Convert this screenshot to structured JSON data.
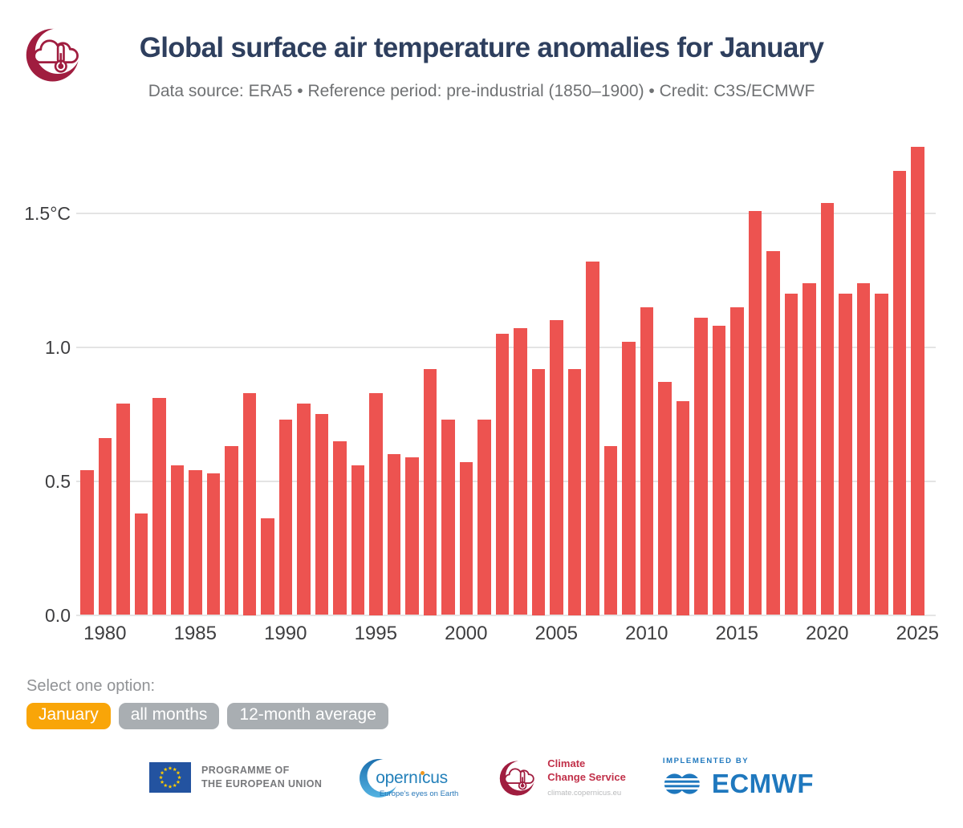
{
  "header": {
    "title": "Global surface air temperature anomalies for January",
    "subtitle": "Data source: ERA5 • Reference period: pre-industrial (1850–1900) • Credit: C3S/ECMWF"
  },
  "chart_data": {
    "type": "bar",
    "title": "Global surface air temperature anomalies for January",
    "xlabel": "",
    "ylabel": "",
    "y_unit": "°C",
    "ylim": [
      0,
      1.8
    ],
    "grid": true,
    "legend": "none",
    "bar_color": "#ED5350",
    "x": [
      1979,
      1980,
      1981,
      1982,
      1983,
      1984,
      1985,
      1986,
      1987,
      1988,
      1989,
      1990,
      1991,
      1992,
      1993,
      1994,
      1995,
      1996,
      1997,
      1998,
      1999,
      2000,
      2001,
      2002,
      2003,
      2004,
      2005,
      2006,
      2007,
      2008,
      2009,
      2010,
      2011,
      2012,
      2013,
      2014,
      2015,
      2016,
      2017,
      2018,
      2019,
      2020,
      2021,
      2022,
      2023,
      2024,
      2025
    ],
    "values": [
      0.54,
      0.66,
      0.79,
      0.38,
      0.81,
      0.56,
      0.54,
      0.53,
      0.63,
      0.83,
      0.36,
      0.73,
      0.79,
      0.75,
      0.65,
      0.56,
      0.83,
      0.6,
      0.59,
      0.92,
      0.73,
      0.57,
      0.73,
      1.05,
      1.07,
      0.92,
      1.1,
      0.92,
      1.32,
      0.63,
      1.02,
      1.15,
      0.87,
      0.8,
      1.11,
      1.08,
      1.15,
      1.51,
      1.36,
      1.2,
      1.24,
      1.54,
      1.2,
      1.24,
      1.2,
      1.66,
      1.75
    ],
    "y_ticks": [
      {
        "value": 0.0,
        "label": "0.0"
      },
      {
        "value": 0.5,
        "label": "0.5"
      },
      {
        "value": 1.0,
        "label": "1.0"
      },
      {
        "value": 1.5,
        "label": "1.5°C"
      }
    ],
    "x_ticks": [
      1980,
      1985,
      1990,
      1995,
      2000,
      2005,
      2010,
      2015,
      2020,
      2025
    ]
  },
  "controls": {
    "label": "Select one option:",
    "options": [
      {
        "label": "January",
        "selected": true
      },
      {
        "label": "all months",
        "selected": false
      },
      {
        "label": "12-month average",
        "selected": false
      }
    ]
  },
  "footer": {
    "eu_programme": {
      "line1": "PROGRAMME OF",
      "line2": "THE EUROPEAN UNION"
    },
    "copernicus": {
      "wordmark": "opernıcus",
      "tagline": "Europe's eyes on Earth"
    },
    "c3s": {
      "line1": "Climate",
      "line2": "Change Service",
      "url": "climate.copernicus.eu"
    },
    "ecmwf": {
      "implemented_by": "IMPLEMENTED BY",
      "name": "ECMWF"
    }
  },
  "colors": {
    "bar": "#ED5350",
    "title": "#2E3F5E",
    "subtitle": "#6F7173",
    "axis_label": "#3E3E40",
    "gridline": "#E4E4E4",
    "accent_orange": "#F9A508",
    "pill_gray": "#A9AEB2",
    "c3s_crimson": "#A01D3F",
    "c3s_text": "#C13049",
    "eu_blue": "#2353A0",
    "eu_star_yellow": "#FFCC00",
    "copernicus_blue": "#2380BA",
    "copernicus_dot": "#F0971E",
    "ecmwf_blue": "#1F78BE",
    "footer_gray": "#77787B",
    "select_label_gray": "#909295"
  }
}
